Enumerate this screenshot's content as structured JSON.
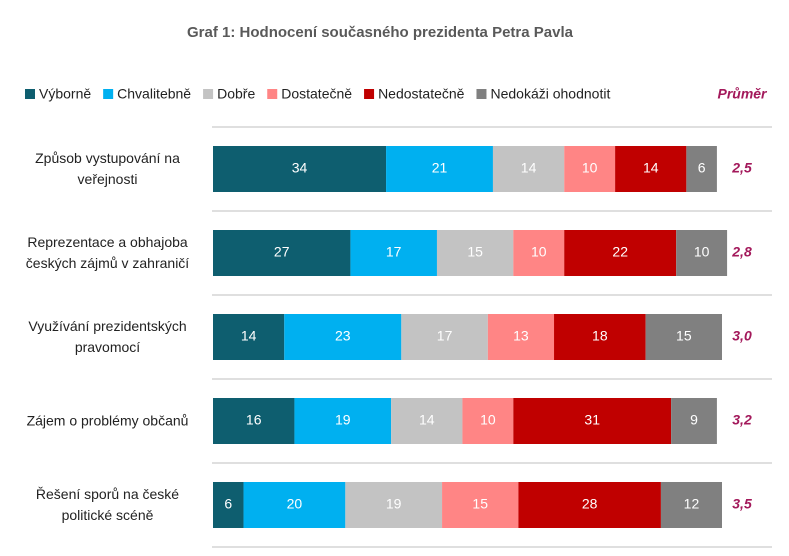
{
  "chart_data": {
    "type": "stacked-bar-horizontal",
    "title": "Graf 1: Hodnocení současného prezidenta Petra Pavla",
    "categories": [
      "Způsob vystupování na veřejnosti",
      "Reprezentace a obhajoba českých zájmů v zahraničí",
      "Využívání prezidentských pravomocí",
      "Zájem o problémy občanů",
      "Řešení sporů na české politické scéně"
    ],
    "series": [
      {
        "name": "Výborně",
        "color": "#0e5e6f",
        "values": [
          34,
          27,
          14,
          16,
          6
        ]
      },
      {
        "name": "Chvalitebně",
        "color": "#00b0f0",
        "values": [
          21,
          17,
          23,
          19,
          20
        ]
      },
      {
        "name": "Dobře",
        "color": "#c3c3c3",
        "values": [
          14,
          15,
          17,
          14,
          19
        ]
      },
      {
        "name": "Dostatečně",
        "color": "#ff8585",
        "values": [
          10,
          10,
          13,
          10,
          15
        ]
      },
      {
        "name": "Nedostatečně",
        "color": "#c00000",
        "values": [
          14,
          22,
          18,
          31,
          28
        ]
      },
      {
        "name": "Nedokáži ohodnotit",
        "color": "#808080",
        "values": [
          6,
          10,
          15,
          9,
          12
        ]
      }
    ],
    "average": {
      "name": "Průměr",
      "color": "#a3195b",
      "values": [
        2.5,
        2.8,
        3.0,
        3.2,
        3.5
      ],
      "value_labels": [
        "2,5",
        "2,8",
        "3,0",
        "3,2",
        "3,5"
      ]
    },
    "xlim": [
      0,
      100
    ]
  }
}
